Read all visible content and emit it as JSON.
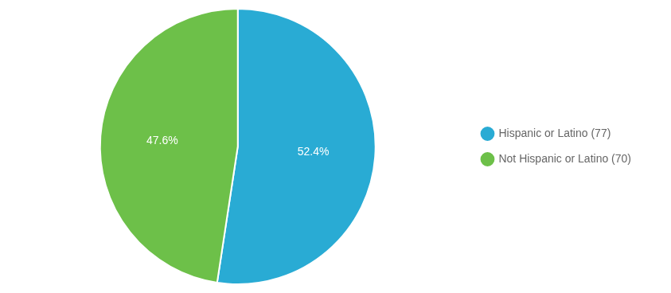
{
  "chart_data": {
    "type": "pie",
    "categories": [
      "Hispanic or Latino (77)",
      "Not Hispanic or Latino (70)"
    ],
    "values": [
      52.4,
      47.6
    ],
    "value_labels": [
      "52.4%",
      "47.6%"
    ],
    "colors": [
      "#29ABD4",
      "#6DC049"
    ],
    "data_labels": true,
    "legend": "right"
  }
}
